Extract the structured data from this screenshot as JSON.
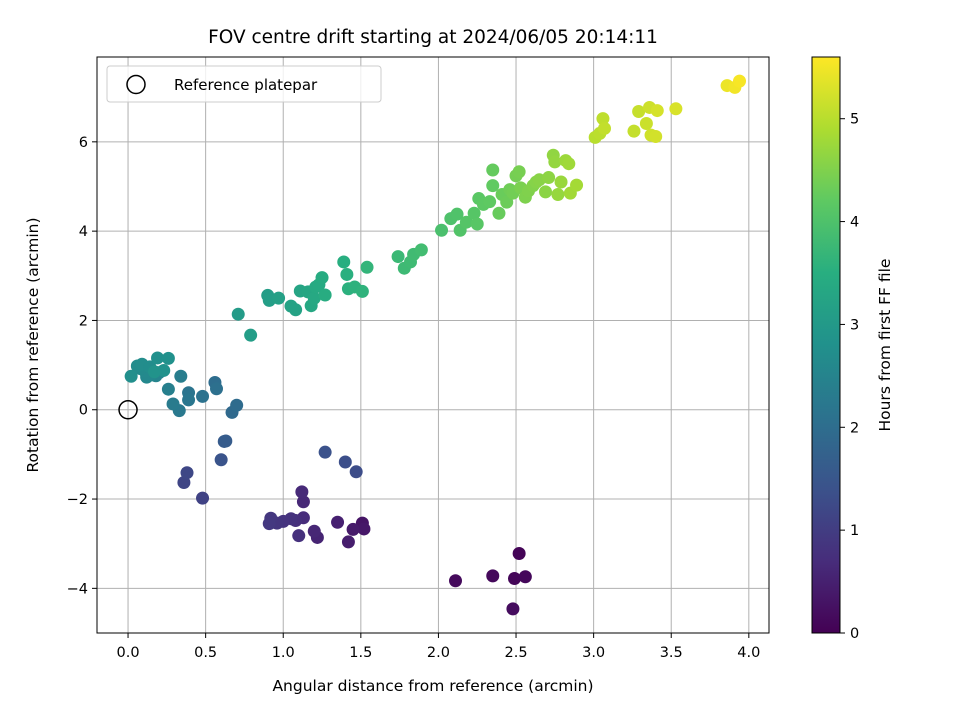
{
  "chart_data": {
    "type": "scatter",
    "title": "FOV centre drift starting at 2024/06/05 20:14:11",
    "xlabel": "Angular distance from reference (arcmin)",
    "ylabel": "Rotation from reference (arcmin)",
    "xlim": [
      -0.2,
      4.13
    ],
    "ylim": [
      -5.0,
      7.9
    ],
    "xticks": [
      0.0,
      0.5,
      1.0,
      1.5,
      2.0,
      2.5,
      3.0,
      3.5,
      4.0
    ],
    "xtick_labels": [
      "0.0",
      "0.5",
      "1.0",
      "1.5",
      "2.0",
      "2.5",
      "3.0",
      "3.5",
      "4.0"
    ],
    "yticks": [
      -4,
      -2,
      0,
      2,
      4,
      6
    ],
    "ytick_labels": [
      "−4",
      "−2",
      "0",
      "2",
      "4",
      "6"
    ],
    "grid": true,
    "legend": {
      "placement": "top-left",
      "entries": [
        "Reference platepar"
      ]
    },
    "reference_point": {
      "x": 0.0,
      "y": 0.0
    },
    "colorbar": {
      "label": "Hours from first FF file",
      "colormap": "viridis",
      "range": [
        0,
        5.6
      ],
      "ticks": [
        0,
        1,
        2,
        3,
        4,
        5
      ],
      "tick_labels": [
        "0",
        "1",
        "2",
        "3",
        "4",
        "5"
      ]
    },
    "points": [
      {
        "x": 2.52,
        "y": -3.22,
        "h": 0.05
      },
      {
        "x": 2.49,
        "y": -3.78,
        "h": 0.08
      },
      {
        "x": 2.56,
        "y": -3.74,
        "h": 0.1
      },
      {
        "x": 2.35,
        "y": -3.72,
        "h": 0.12
      },
      {
        "x": 2.11,
        "y": -3.83,
        "h": 0.15
      },
      {
        "x": 2.48,
        "y": -4.46,
        "h": 0.18
      },
      {
        "x": 1.51,
        "y": -2.54,
        "h": 0.3
      },
      {
        "x": 1.52,
        "y": -2.67,
        "h": 0.35
      },
      {
        "x": 1.45,
        "y": -2.68,
        "h": 0.4
      },
      {
        "x": 1.42,
        "y": -2.96,
        "h": 0.45
      },
      {
        "x": 1.35,
        "y": -2.52,
        "h": 0.5
      },
      {
        "x": 1.22,
        "y": -2.86,
        "h": 0.55
      },
      {
        "x": 1.2,
        "y": -2.72,
        "h": 0.6
      },
      {
        "x": 1.13,
        "y": -2.06,
        "h": 0.62
      },
      {
        "x": 1.12,
        "y": -1.84,
        "h": 0.65
      },
      {
        "x": 1.13,
        "y": -2.42,
        "h": 0.7
      },
      {
        "x": 1.08,
        "y": -2.48,
        "h": 0.75
      },
      {
        "x": 1.1,
        "y": -2.82,
        "h": 0.78
      },
      {
        "x": 1.05,
        "y": -2.44,
        "h": 0.8
      },
      {
        "x": 1.0,
        "y": -2.5,
        "h": 0.82
      },
      {
        "x": 0.96,
        "y": -2.54,
        "h": 0.85
      },
      {
        "x": 0.92,
        "y": -2.43,
        "h": 0.88
      },
      {
        "x": 0.91,
        "y": -2.55,
        "h": 0.9
      },
      {
        "x": 1.47,
        "y": -1.39,
        "h": 1.3
      },
      {
        "x": 1.4,
        "y": -1.17,
        "h": 1.35
      },
      {
        "x": 1.27,
        "y": -0.95,
        "h": 1.4
      },
      {
        "x": 0.48,
        "y": -1.98,
        "h": 1.1
      },
      {
        "x": 0.36,
        "y": -1.63,
        "h": 1.15
      },
      {
        "x": 0.38,
        "y": -1.41,
        "h": 1.2
      },
      {
        "x": 0.6,
        "y": -1.12,
        "h": 1.45
      },
      {
        "x": 0.62,
        "y": -0.71,
        "h": 1.6
      },
      {
        "x": 0.63,
        "y": -0.7,
        "h": 1.62
      },
      {
        "x": 0.67,
        "y": -0.06,
        "h": 1.9
      },
      {
        "x": 0.7,
        "y": 0.1,
        "h": 1.95
      },
      {
        "x": 0.56,
        "y": 0.61,
        "h": 2.0
      },
      {
        "x": 0.57,
        "y": 0.47,
        "h": 2.05
      },
      {
        "x": 0.48,
        "y": 0.3,
        "h": 2.1
      },
      {
        "x": 0.39,
        "y": 0.38,
        "h": 2.15
      },
      {
        "x": 0.39,
        "y": 0.22,
        "h": 2.2
      },
      {
        "x": 0.33,
        "y": -0.02,
        "h": 2.25
      },
      {
        "x": 0.29,
        "y": 0.13,
        "h": 2.3
      },
      {
        "x": 0.34,
        "y": 0.75,
        "h": 2.35
      },
      {
        "x": 0.26,
        "y": 0.46,
        "h": 2.4
      },
      {
        "x": 0.2,
        "y": 0.83,
        "h": 2.45
      },
      {
        "x": 0.18,
        "y": 0.76,
        "h": 2.5
      },
      {
        "x": 0.15,
        "y": 0.78,
        "h": 2.55
      },
      {
        "x": 0.12,
        "y": 0.73,
        "h": 2.6
      },
      {
        "x": 0.11,
        "y": 0.86,
        "h": 2.62
      },
      {
        "x": 0.08,
        "y": 0.92,
        "h": 2.65
      },
      {
        "x": 0.06,
        "y": 0.98,
        "h": 2.68
      },
      {
        "x": 0.09,
        "y": 1.02,
        "h": 2.7
      },
      {
        "x": 0.14,
        "y": 0.96,
        "h": 2.72
      },
      {
        "x": 0.02,
        "y": 0.75,
        "h": 2.75
      },
      {
        "x": 0.19,
        "y": 1.16,
        "h": 2.78
      },
      {
        "x": 0.26,
        "y": 1.15,
        "h": 2.8
      },
      {
        "x": 0.23,
        "y": 0.88,
        "h": 2.82
      },
      {
        "x": 0.17,
        "y": 0.85,
        "h": 2.85
      },
      {
        "x": 0.71,
        "y": 2.14,
        "h": 3.05
      },
      {
        "x": 0.79,
        "y": 1.67,
        "h": 3.08
      },
      {
        "x": 0.9,
        "y": 2.56,
        "h": 3.1
      },
      {
        "x": 0.91,
        "y": 2.45,
        "h": 3.12
      },
      {
        "x": 0.97,
        "y": 2.5,
        "h": 3.15
      },
      {
        "x": 1.05,
        "y": 2.32,
        "h": 3.2
      },
      {
        "x": 1.08,
        "y": 2.24,
        "h": 3.22
      },
      {
        "x": 1.11,
        "y": 2.66,
        "h": 3.25
      },
      {
        "x": 1.16,
        "y": 2.64,
        "h": 3.3
      },
      {
        "x": 1.18,
        "y": 2.33,
        "h": 3.32
      },
      {
        "x": 1.2,
        "y": 2.5,
        "h": 3.35
      },
      {
        "x": 1.21,
        "y": 2.75,
        "h": 3.38
      },
      {
        "x": 1.23,
        "y": 2.8,
        "h": 3.4
      },
      {
        "x": 1.25,
        "y": 2.96,
        "h": 3.42
      },
      {
        "x": 1.27,
        "y": 2.57,
        "h": 3.45
      },
      {
        "x": 1.39,
        "y": 3.31,
        "h": 3.5
      },
      {
        "x": 1.41,
        "y": 3.03,
        "h": 3.52
      },
      {
        "x": 1.42,
        "y": 2.71,
        "h": 3.55
      },
      {
        "x": 1.46,
        "y": 2.75,
        "h": 3.58
      },
      {
        "x": 1.51,
        "y": 2.65,
        "h": 3.6
      },
      {
        "x": 1.54,
        "y": 3.19,
        "h": 3.65
      },
      {
        "x": 1.74,
        "y": 3.43,
        "h": 3.75
      },
      {
        "x": 1.78,
        "y": 3.17,
        "h": 3.78
      },
      {
        "x": 1.82,
        "y": 3.31,
        "h": 3.8
      },
      {
        "x": 1.84,
        "y": 3.48,
        "h": 3.82
      },
      {
        "x": 1.89,
        "y": 3.58,
        "h": 3.85
      },
      {
        "x": 2.02,
        "y": 4.02,
        "h": 3.95
      },
      {
        "x": 2.08,
        "y": 4.28,
        "h": 4.0
      },
      {
        "x": 2.12,
        "y": 4.38,
        "h": 4.02
      },
      {
        "x": 2.14,
        "y": 4.02,
        "h": 4.05
      },
      {
        "x": 2.18,
        "y": 4.2,
        "h": 4.08
      },
      {
        "x": 2.23,
        "y": 4.4,
        "h": 4.1
      },
      {
        "x": 2.25,
        "y": 4.16,
        "h": 4.12
      },
      {
        "x": 2.26,
        "y": 4.73,
        "h": 4.15
      },
      {
        "x": 2.29,
        "y": 4.6,
        "h": 4.18
      },
      {
        "x": 2.33,
        "y": 4.66,
        "h": 4.2
      },
      {
        "x": 2.35,
        "y": 5.02,
        "h": 4.22
      },
      {
        "x": 2.35,
        "y": 5.37,
        "h": 4.25
      },
      {
        "x": 2.39,
        "y": 4.4,
        "h": 4.28
      },
      {
        "x": 2.41,
        "y": 4.82,
        "h": 4.3
      },
      {
        "x": 2.44,
        "y": 4.65,
        "h": 4.32
      },
      {
        "x": 2.46,
        "y": 4.93,
        "h": 4.35
      },
      {
        "x": 2.48,
        "y": 4.85,
        "h": 4.38
      },
      {
        "x": 2.5,
        "y": 5.24,
        "h": 4.4
      },
      {
        "x": 2.52,
        "y": 5.33,
        "h": 4.42
      },
      {
        "x": 2.53,
        "y": 4.97,
        "h": 4.45
      },
      {
        "x": 2.56,
        "y": 4.76,
        "h": 4.48
      },
      {
        "x": 2.58,
        "y": 4.9,
        "h": 4.5
      },
      {
        "x": 2.61,
        "y": 5.02,
        "h": 4.52
      },
      {
        "x": 2.63,
        "y": 5.1,
        "h": 4.55
      },
      {
        "x": 2.65,
        "y": 5.15,
        "h": 4.58
      },
      {
        "x": 2.69,
        "y": 4.88,
        "h": 4.6
      },
      {
        "x": 2.71,
        "y": 5.2,
        "h": 4.62
      },
      {
        "x": 2.74,
        "y": 5.7,
        "h": 4.65
      },
      {
        "x": 2.75,
        "y": 5.55,
        "h": 4.68
      },
      {
        "x": 2.77,
        "y": 4.82,
        "h": 4.7
      },
      {
        "x": 2.79,
        "y": 5.1,
        "h": 4.72
      },
      {
        "x": 2.82,
        "y": 5.58,
        "h": 4.75
      },
      {
        "x": 2.84,
        "y": 5.51,
        "h": 4.78
      },
      {
        "x": 2.85,
        "y": 4.85,
        "h": 4.8
      },
      {
        "x": 2.89,
        "y": 5.03,
        "h": 4.82
      },
      {
        "x": 3.01,
        "y": 6.1,
        "h": 5.0
      },
      {
        "x": 3.04,
        "y": 6.19,
        "h": 5.02
      },
      {
        "x": 3.06,
        "y": 6.52,
        "h": 5.05
      },
      {
        "x": 3.07,
        "y": 6.3,
        "h": 5.08
      },
      {
        "x": 3.26,
        "y": 6.24,
        "h": 5.1
      },
      {
        "x": 3.29,
        "y": 6.68,
        "h": 5.12
      },
      {
        "x": 3.34,
        "y": 6.41,
        "h": 5.15
      },
      {
        "x": 3.36,
        "y": 6.77,
        "h": 5.18
      },
      {
        "x": 3.37,
        "y": 6.15,
        "h": 5.2
      },
      {
        "x": 3.4,
        "y": 6.12,
        "h": 5.22
      },
      {
        "x": 3.41,
        "y": 6.7,
        "h": 5.25
      },
      {
        "x": 3.53,
        "y": 6.74,
        "h": 5.28
      },
      {
        "x": 3.86,
        "y": 7.26,
        "h": 5.45
      },
      {
        "x": 3.91,
        "y": 7.22,
        "h": 5.5
      },
      {
        "x": 3.94,
        "y": 7.36,
        "h": 5.55
      }
    ]
  }
}
